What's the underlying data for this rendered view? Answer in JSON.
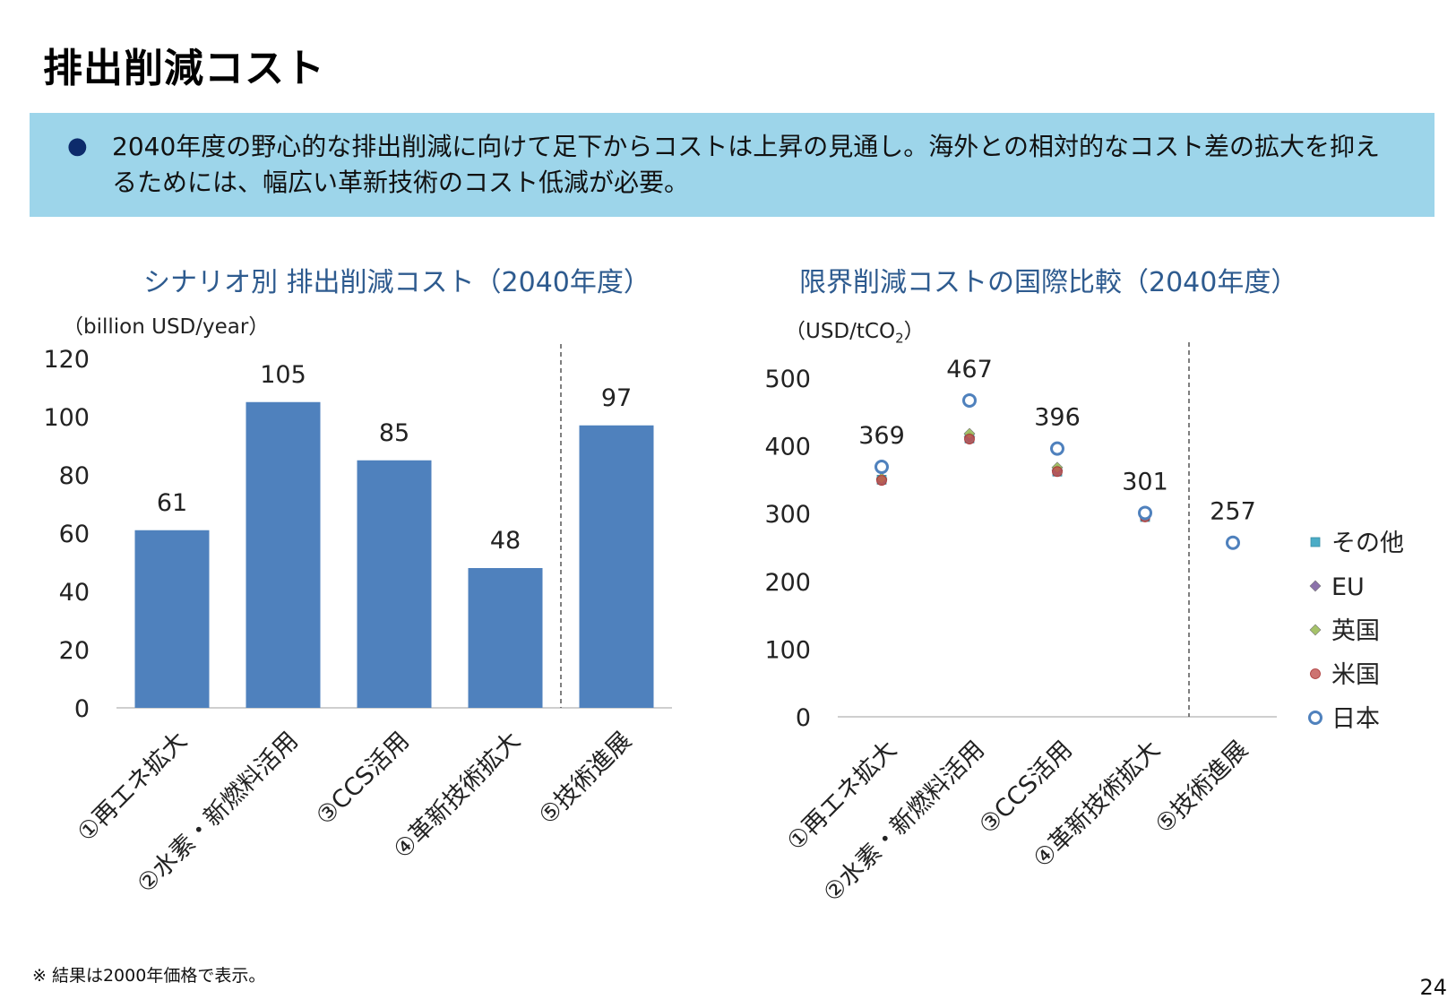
{
  "title": "排出削減コスト",
  "summary": "2040年度の野心的な排出削減に向けて足下からコストは上昇の見通し。海外との相対的なコスト差の拡大を抑えるためには、幅広い革新技術のコスト低減が必要。",
  "summary_bullet": "●",
  "footnote": "※ 結果は2000年価格で表示。",
  "page_number": "24",
  "colors": {
    "bar": "#4f81bd",
    "japan": "#4f81bd",
    "usa": "#c0504d",
    "uk": "#9bbb59",
    "eu": "#8064a2",
    "other": "#4bacc6",
    "summary_bg": "#9dd5ea",
    "chart_title": "#2e5b8f"
  },
  "chart_data": [
    {
      "type": "bar",
      "title": "シナリオ別 排出削減コスト（2040年度）",
      "ylabel": "（billion USD/year）",
      "categories": [
        "①再エネ拡大",
        "②水素・新燃料活用",
        "③CCS活用",
        "④革新技術拡大",
        "⑤技術進展"
      ],
      "values": [
        61,
        105,
        85,
        48,
        97
      ],
      "ylim": [
        0,
        120
      ],
      "yticks": [
        0,
        20,
        40,
        60,
        80,
        100,
        120
      ],
      "data_labels": [
        "61",
        "105",
        "85",
        "48",
        "97"
      ],
      "divider_after_category": 4,
      "grid": false
    },
    {
      "type": "scatter",
      "title": "限界削減コストの国際比較（2040年度）",
      "ylabel_main": "（USD/tCO",
      "ylabel_sub": "2",
      "ylabel_end": "）",
      "categories": [
        "①再エネ拡大",
        "②水素・新燃料活用",
        "③CCS活用",
        "④革新技術拡大",
        "⑤技術進展"
      ],
      "ylim": [
        0,
        500
      ],
      "yticks": [
        0,
        100,
        200,
        300,
        400,
        500
      ],
      "legend_position": "right",
      "legend": [
        "その他",
        "EU",
        "英国",
        "米国",
        "日本"
      ],
      "divider_after_category": 4,
      "grid": false,
      "series": [
        {
          "name": "日本",
          "marker": "circle-open",
          "values": [
            369,
            467,
            396,
            301,
            257
          ]
        },
        {
          "name": "米国",
          "marker": "circle",
          "values": [
            349,
            410,
            362,
            295,
            null
          ]
        },
        {
          "name": "英国",
          "marker": "diamond",
          "values": [
            352,
            418,
            368,
            297,
            null
          ]
        },
        {
          "name": "EU",
          "marker": "diamond",
          "values": [
            350,
            413,
            364,
            296,
            null
          ]
        },
        {
          "name": "その他",
          "marker": "square",
          "values": [
            350,
            411,
            362,
            295,
            null
          ]
        }
      ],
      "data_labels": [
        "369",
        "467",
        "396",
        "301",
        "257"
      ]
    }
  ]
}
